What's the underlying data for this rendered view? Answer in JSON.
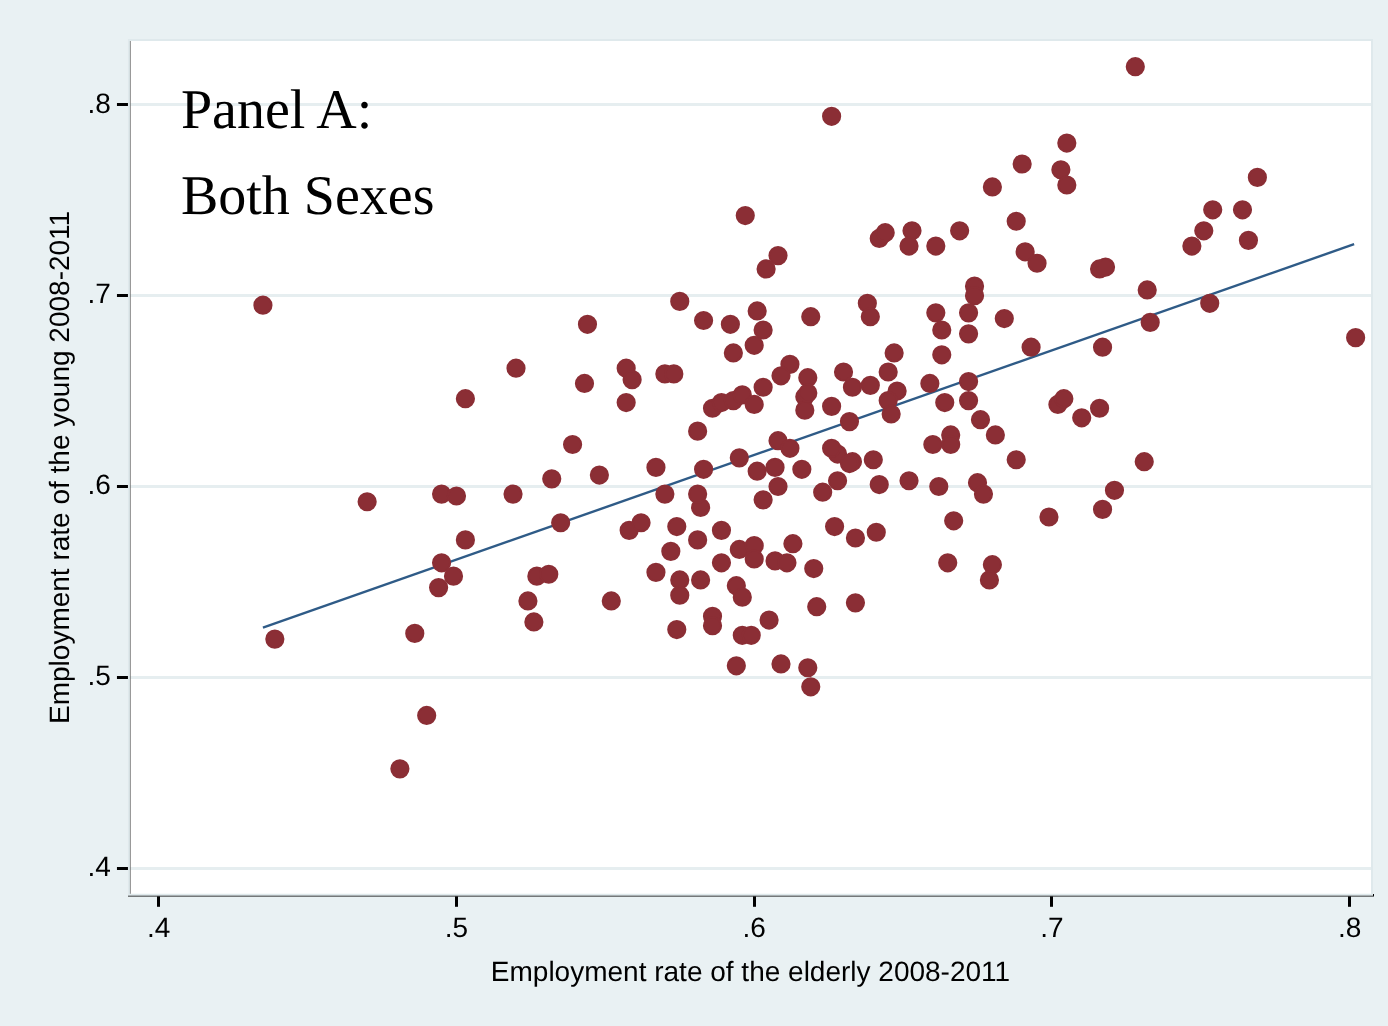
{
  "chart_data": {
    "type": "scatter",
    "xlabel": "Employment rate of the elderly 2008-2011",
    "ylabel": "Employment rate of the young 2008-2011",
    "annotations": [
      "Panel A:",
      "Both Sexes"
    ],
    "xlim": [
      0.39,
      0.8075
    ],
    "ylim": [
      0.386,
      0.834
    ],
    "xticks": [
      {
        "value": 0.4,
        "label": ".4"
      },
      {
        "value": 0.5,
        "label": ".5"
      },
      {
        "value": 0.6,
        "label": ".6"
      },
      {
        "value": 0.7,
        "label": ".7"
      },
      {
        "value": 0.8,
        "label": ".8"
      }
    ],
    "yticks": [
      {
        "value": 0.4,
        "label": ".4"
      },
      {
        "value": 0.5,
        "label": ".5"
      },
      {
        "value": 0.6,
        "label": ".6"
      },
      {
        "value": 0.7,
        "label": ".7"
      },
      {
        "value": 0.8,
        "label": ".8"
      }
    ],
    "grid": "y",
    "legend": false,
    "series": [
      {
        "color": "#8b2e35",
        "marker": "circle",
        "x": [
          0.435,
          0.439,
          0.47,
          0.486,
          0.49,
          0.481,
          0.495,
          0.5,
          0.503,
          0.495,
          0.494,
          0.499,
          0.519,
          0.532,
          0.548,
          0.535,
          0.524,
          0.526,
          0.527,
          0.531,
          0.552,
          0.558,
          0.562,
          0.567,
          0.57,
          0.572,
          0.574,
          0.575,
          0.575,
          0.574,
          0.581,
          0.582,
          0.582,
          0.581,
          0.586,
          0.586,
          0.589,
          0.589,
          0.594,
          0.594,
          0.595,
          0.596,
          0.596,
          0.567,
          0.583,
          0.575,
          0.583,
          0.592,
          0.593,
          0.544,
          0.52,
          0.557,
          0.559,
          0.57,
          0.573,
          0.543,
          0.503,
          0.557,
          0.586,
          0.589,
          0.593,
          0.596,
          0.581,
          0.539,
          0.595,
          0.597,
          0.728,
          0.626,
          0.705,
          0.69,
          0.703,
          0.705,
          0.68,
          0.769,
          0.754,
          0.764,
          0.751,
          0.747,
          0.766,
          0.688,
          0.691,
          0.695,
          0.669,
          0.653,
          0.652,
          0.661,
          0.642,
          0.644,
          0.608,
          0.604,
          0.716,
          0.718,
          0.732,
          0.674,
          0.674,
          0.753,
          0.733,
          0.802,
          0.717,
          0.693,
          0.684,
          0.672,
          0.672,
          0.661,
          0.663,
          0.663,
          0.647,
          0.645,
          0.639,
          0.633,
          0.63,
          0.638,
          0.639,
          0.619,
          0.601,
          0.603,
          0.6,
          0.612,
          0.609,
          0.618,
          0.603,
          0.6,
          0.617,
          0.617,
          0.626,
          0.632,
          0.648,
          0.645,
          0.646,
          0.659,
          0.664,
          0.672,
          0.672,
          0.676,
          0.681,
          0.688,
          0.66,
          0.666,
          0.666,
          0.702,
          0.704,
          0.71,
          0.716,
          0.731,
          0.628,
          0.633,
          0.64,
          0.626,
          0.608,
          0.612,
          0.618,
          0.601,
          0.607,
          0.616,
          0.608,
          0.603,
          0.623,
          0.628,
          0.632,
          0.642,
          0.652,
          0.662,
          0.675,
          0.677,
          0.667,
          0.699,
          0.717,
          0.721,
          0.6,
          0.6,
          0.613,
          0.607,
          0.611,
          0.62,
          0.627,
          0.634,
          0.641,
          0.665,
          0.68,
          0.679,
          0.621,
          0.634,
          0.605,
          0.599,
          0.609,
          0.618,
          0.619
        ],
        "values": [
          0.695,
          0.52,
          0.592,
          0.523,
          0.48,
          0.452,
          0.596,
          0.595,
          0.572,
          0.56,
          0.547,
          0.553,
          0.596,
          0.604,
          0.606,
          0.581,
          0.54,
          0.529,
          0.553,
          0.554,
          0.54,
          0.577,
          0.581,
          0.555,
          0.596,
          0.566,
          0.579,
          0.551,
          0.543,
          0.525,
          0.572,
          0.551,
          0.589,
          0.596,
          0.532,
          0.527,
          0.577,
          0.56,
          0.506,
          0.548,
          0.567,
          0.522,
          0.542,
          0.61,
          0.609,
          0.697,
          0.687,
          0.685,
          0.67,
          0.685,
          0.662,
          0.662,
          0.656,
          0.659,
          0.659,
          0.654,
          0.646,
          0.644,
          0.641,
          0.644,
          0.645,
          0.648,
          0.629,
          0.622,
          0.615,
          0.742,
          0.82,
          0.794,
          0.78,
          0.769,
          0.766,
          0.758,
          0.757,
          0.762,
          0.745,
          0.745,
          0.734,
          0.726,
          0.729,
          0.739,
          0.723,
          0.717,
          0.734,
          0.734,
          0.726,
          0.726,
          0.73,
          0.733,
          0.721,
          0.714,
          0.714,
          0.715,
          0.703,
          0.705,
          0.7,
          0.696,
          0.686,
          0.678,
          0.673,
          0.673,
          0.688,
          0.68,
          0.691,
          0.691,
          0.682,
          0.669,
          0.67,
          0.66,
          0.653,
          0.652,
          0.66,
          0.696,
          0.689,
          0.689,
          0.692,
          0.682,
          0.674,
          0.664,
          0.658,
          0.657,
          0.652,
          0.643,
          0.647,
          0.64,
          0.642,
          0.634,
          0.65,
          0.645,
          0.638,
          0.654,
          0.644,
          0.655,
          0.645,
          0.635,
          0.627,
          0.614,
          0.622,
          0.627,
          0.622,
          0.643,
          0.646,
          0.636,
          0.641,
          0.613,
          0.617,
          0.613,
          0.614,
          0.62,
          0.624,
          0.62,
          0.649,
          0.608,
          0.61,
          0.609,
          0.6,
          0.593,
          0.597,
          0.603,
          0.612,
          0.601,
          0.603,
          0.6,
          0.602,
          0.596,
          0.582,
          0.584,
          0.588,
          0.598,
          0.569,
          0.562,
          0.57,
          0.561,
          0.56,
          0.557,
          0.579,
          0.573,
          0.576,
          0.56,
          0.559,
          0.551,
          0.537,
          0.539,
          0.53,
          0.522,
          0.507,
          0.505,
          0.495
        ]
      },
      {
        "type": "line",
        "marker": "none",
        "color": "#2f5b87",
        "x": [
          0.435,
          0.8015
        ],
        "values": [
          0.526,
          0.727
        ]
      }
    ]
  }
}
